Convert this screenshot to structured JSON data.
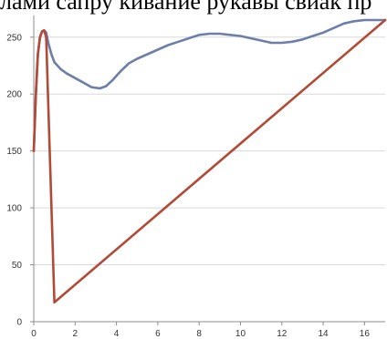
{
  "header_text": "лами сапру кивание рукавы свиак пр",
  "chart_data": {
    "type": "line",
    "title": "",
    "xlabel": "",
    "ylabel": "",
    "xlim": [
      0,
      17
    ],
    "ylim": [
      0,
      266
    ],
    "x_ticks": [
      0,
      2,
      4,
      6,
      8,
      10,
      12,
      14,
      16
    ],
    "y_ticks": [
      0,
      50,
      100,
      150,
      200,
      250
    ],
    "grid": "horizontal",
    "legend": "none",
    "series": [
      {
        "color": "#6b7fa8",
        "points": [
          [
            0.0,
            150
          ],
          [
            0.1,
            200
          ],
          [
            0.2,
            235
          ],
          [
            0.3,
            250
          ],
          [
            0.4,
            255
          ],
          [
            0.5,
            256
          ],
          [
            0.6,
            254
          ],
          [
            0.7,
            245
          ],
          [
            0.85,
            235
          ],
          [
            1.0,
            228
          ],
          [
            1.3,
            222
          ],
          [
            1.6,
            218
          ],
          [
            2.0,
            214
          ],
          [
            2.4,
            210
          ],
          [
            2.8,
            206
          ],
          [
            3.2,
            205
          ],
          [
            3.5,
            207
          ],
          [
            3.8,
            212
          ],
          [
            4.2,
            220
          ],
          [
            4.6,
            227
          ],
          [
            5.0,
            231
          ],
          [
            5.5,
            235
          ],
          [
            6.0,
            239
          ],
          [
            6.5,
            243
          ],
          [
            7.0,
            246
          ],
          [
            7.5,
            249
          ],
          [
            8.0,
            252
          ],
          [
            8.5,
            253
          ],
          [
            9.0,
            253
          ],
          [
            9.5,
            252
          ],
          [
            10.0,
            251
          ],
          [
            10.5,
            249
          ],
          [
            11.0,
            247
          ],
          [
            11.5,
            245
          ],
          [
            12.0,
            245
          ],
          [
            12.5,
            246
          ],
          [
            13.0,
            248
          ],
          [
            13.5,
            251
          ],
          [
            14.0,
            254
          ],
          [
            14.5,
            258
          ],
          [
            15.0,
            262
          ],
          [
            15.5,
            264
          ],
          [
            16.0,
            265
          ],
          [
            16.5,
            265
          ],
          [
            17.0,
            265
          ]
        ]
      },
      {
        "color": "#b24a36",
        "points": [
          [
            0.0,
            150
          ],
          [
            0.1,
            200
          ],
          [
            0.2,
            235
          ],
          [
            0.3,
            250
          ],
          [
            0.4,
            255
          ],
          [
            0.5,
            256
          ],
          [
            0.6,
            250
          ],
          [
            1.0,
            17
          ],
          [
            17.0,
            265
          ]
        ]
      }
    ]
  }
}
